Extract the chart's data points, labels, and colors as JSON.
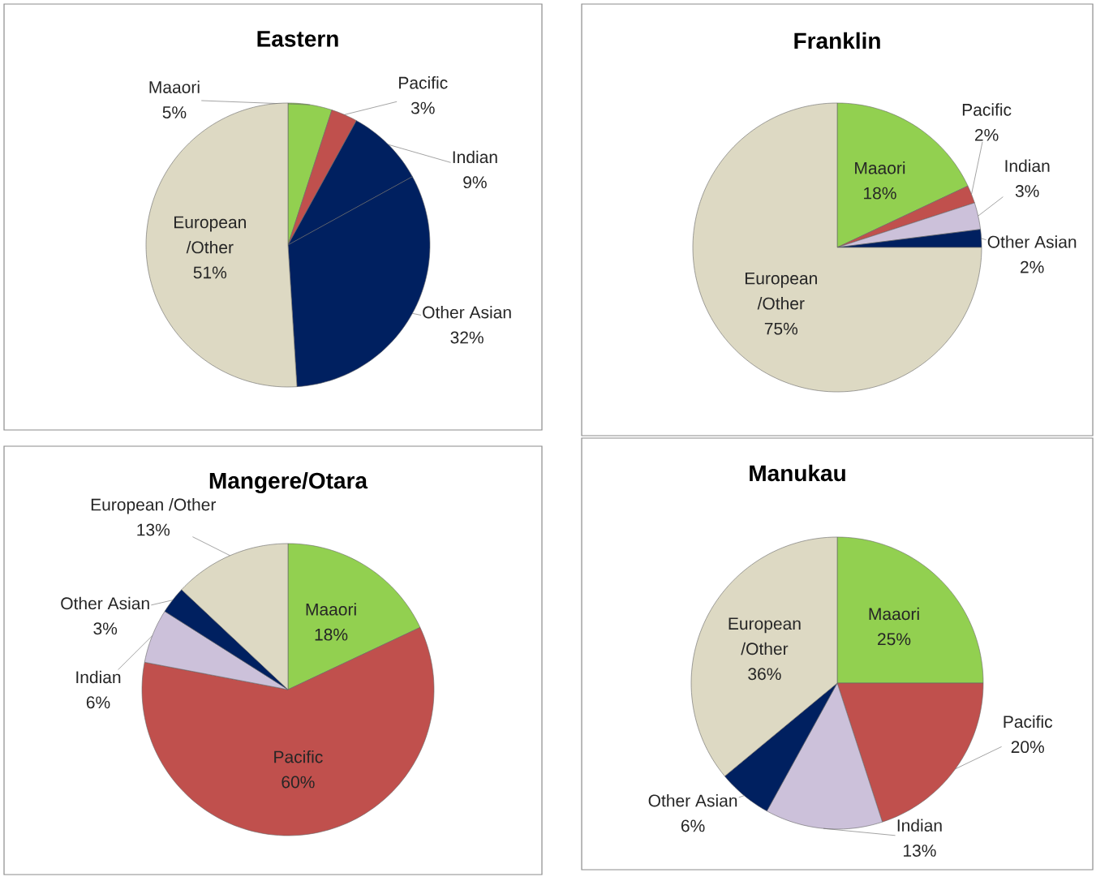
{
  "chart_data": [
    {
      "type": "pie",
      "title": "Eastern",
      "categories": [
        "Maaori",
        "Pacific",
        "Indian",
        "Other Asian",
        "European /Other"
      ],
      "values": [
        5,
        3,
        9,
        32,
        51
      ],
      "value_labels": [
        "5%",
        "3%",
        "9%",
        "32%",
        "51%"
      ],
      "colors": [
        "#92d050",
        "#c0504d",
        "#002060",
        "#002060",
        "#ddd9c3"
      ]
    },
    {
      "type": "pie",
      "title": "Franklin",
      "categories": [
        "Maaori",
        "Pacific",
        "Indian",
        "Other Asian",
        "European /Other"
      ],
      "values": [
        18,
        2,
        3,
        2,
        75
      ],
      "value_labels": [
        "18%",
        "2%",
        "3%",
        "2%",
        "75%"
      ],
      "colors": [
        "#92d050",
        "#c0504d",
        "#ccc1da",
        "#002060",
        "#ddd9c3"
      ]
    },
    {
      "type": "pie",
      "title": "Mangere/Otara",
      "categories": [
        "Maaori",
        "Pacific",
        "Indian",
        "Other Asian",
        "European /Other"
      ],
      "values": [
        18,
        60,
        6,
        3,
        13
      ],
      "value_labels": [
        "18%",
        "60%",
        "6%",
        "3%",
        "13%"
      ],
      "colors": [
        "#92d050",
        "#c0504d",
        "#ccc1da",
        "#002060",
        "#ddd9c3"
      ]
    },
    {
      "type": "pie",
      "title": "Manukau",
      "categories": [
        "Maaori",
        "Pacific",
        "Indian",
        "Other Asian",
        "European /Other"
      ],
      "values": [
        25,
        20,
        13,
        6,
        36
      ],
      "value_labels": [
        "25%",
        "20%",
        "13%",
        "6%",
        "36%"
      ],
      "colors": [
        "#92d050",
        "#c0504d",
        "#ccc1da",
        "#002060",
        "#ddd9c3"
      ]
    }
  ]
}
